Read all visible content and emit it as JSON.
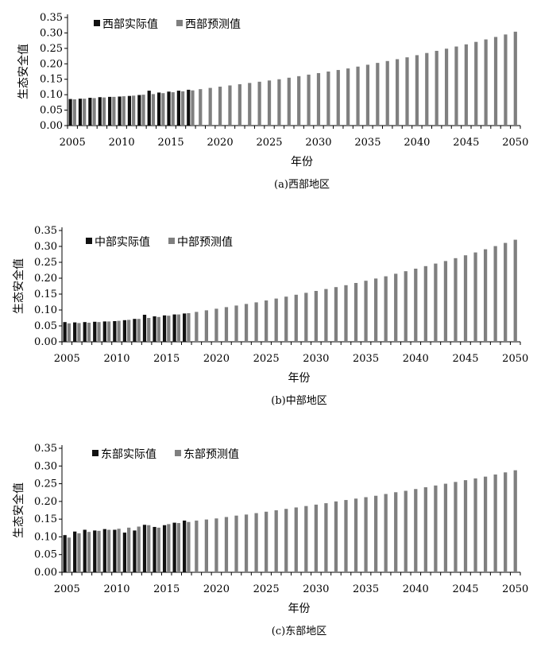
{
  "chart_data": [
    {
      "type": "bar",
      "caption": "(a)西部地区",
      "ylabel": "生态安全值",
      "xlabel": "年份",
      "ylim": [
        0,
        0.35
      ],
      "yticks": [
        "0.00",
        "0.05",
        "0.10",
        "0.15",
        "0.20",
        "0.25",
        "0.30",
        "0.35"
      ],
      "xticks": [
        2005,
        2010,
        2015,
        2020,
        2025,
        2030,
        2035,
        2040,
        2045,
        2050
      ],
      "series": [
        {
          "name": "西部实际值",
          "color": "#111111",
          "x": [
            2005,
            2006,
            2007,
            2008,
            2009,
            2010,
            2011,
            2012,
            2013,
            2014,
            2015,
            2016,
            2017
          ],
          "values": [
            0.086,
            0.087,
            0.09,
            0.092,
            0.093,
            0.094,
            0.096,
            0.099,
            0.113,
            0.107,
            0.11,
            0.113,
            0.116
          ]
        },
        {
          "name": "西部预测值",
          "color": "#7f7f7f",
          "x": [
            2005,
            2006,
            2007,
            2008,
            2009,
            2010,
            2011,
            2012,
            2013,
            2014,
            2015,
            2016,
            2017,
            2018,
            2019,
            2020,
            2021,
            2022,
            2023,
            2024,
            2025,
            2026,
            2027,
            2028,
            2029,
            2030,
            2031,
            2032,
            2033,
            2034,
            2035,
            2036,
            2037,
            2038,
            2039,
            2040,
            2041,
            2042,
            2043,
            2044,
            2045,
            2046,
            2047,
            2048,
            2049,
            2050
          ],
          "values": [
            0.085,
            0.087,
            0.089,
            0.091,
            0.093,
            0.095,
            0.097,
            0.1,
            0.102,
            0.105,
            0.108,
            0.111,
            0.114,
            0.118,
            0.122,
            0.126,
            0.13,
            0.134,
            0.138,
            0.142,
            0.146,
            0.15,
            0.155,
            0.16,
            0.165,
            0.17,
            0.175,
            0.18,
            0.185,
            0.191,
            0.197,
            0.203,
            0.209,
            0.215,
            0.221,
            0.228,
            0.235,
            0.242,
            0.249,
            0.256,
            0.263,
            0.271,
            0.279,
            0.287,
            0.295,
            0.304
          ]
        }
      ]
    },
    {
      "type": "bar",
      "caption": "(b)中部地区",
      "ylabel": "生态安全值",
      "xlabel": "年份",
      "ylim": [
        0,
        0.35
      ],
      "yticks": [
        "0.00",
        "0.05",
        "0.10",
        "0.15",
        "0.20",
        "0.25",
        "0.30",
        "0.35"
      ],
      "xticks": [
        2005,
        2010,
        2015,
        2020,
        2025,
        2030,
        2035,
        2040,
        2045,
        2050
      ],
      "series": [
        {
          "name": "中部实际值",
          "color": "#111111",
          "x": [
            2005,
            2006,
            2007,
            2008,
            2009,
            2010,
            2011,
            2012,
            2013,
            2014,
            2015,
            2016,
            2017
          ],
          "values": [
            0.062,
            0.061,
            0.062,
            0.063,
            0.064,
            0.065,
            0.068,
            0.072,
            0.085,
            0.08,
            0.083,
            0.086,
            0.089
          ]
        },
        {
          "name": "中部预测值",
          "color": "#7f7f7f",
          "x": [
            2005,
            2006,
            2007,
            2008,
            2009,
            2010,
            2011,
            2012,
            2013,
            2014,
            2015,
            2016,
            2017,
            2018,
            2019,
            2020,
            2021,
            2022,
            2023,
            2024,
            2025,
            2026,
            2027,
            2028,
            2029,
            2030,
            2031,
            2032,
            2033,
            2034,
            2035,
            2036,
            2037,
            2038,
            2039,
            2040,
            2041,
            2042,
            2043,
            2044,
            2045,
            2046,
            2047,
            2048,
            2049,
            2050
          ],
          "values": [
            0.058,
            0.059,
            0.06,
            0.062,
            0.064,
            0.066,
            0.069,
            0.072,
            0.075,
            0.078,
            0.082,
            0.086,
            0.09,
            0.094,
            0.099,
            0.104,
            0.109,
            0.114,
            0.119,
            0.124,
            0.13,
            0.136,
            0.142,
            0.148,
            0.154,
            0.16,
            0.166,
            0.172,
            0.178,
            0.185,
            0.192,
            0.199,
            0.206,
            0.214,
            0.222,
            0.23,
            0.238,
            0.246,
            0.254,
            0.263,
            0.272,
            0.281,
            0.291,
            0.301,
            0.311,
            0.321
          ]
        }
      ]
    },
    {
      "type": "bar",
      "caption": "(c)东部地区",
      "ylabel": "生态安全值",
      "xlabel": "年份",
      "ylim": [
        0,
        0.35
      ],
      "yticks": [
        "0.00",
        "0.05",
        "0.10",
        "0.15",
        "0.20",
        "0.25",
        "0.30",
        "0.35"
      ],
      "xticks": [
        2005,
        2010,
        2015,
        2020,
        2025,
        2030,
        2035,
        2040,
        2045,
        2050
      ],
      "series": [
        {
          "name": "东部实际值",
          "color": "#111111",
          "x": [
            2005,
            2006,
            2007,
            2008,
            2009,
            2010,
            2011,
            2012,
            2013,
            2014,
            2015,
            2016,
            2017
          ],
          "values": [
            0.105,
            0.115,
            0.12,
            0.118,
            0.122,
            0.12,
            0.112,
            0.118,
            0.134,
            0.128,
            0.133,
            0.14,
            0.146
          ]
        },
        {
          "name": "东部预测值",
          "color": "#7f7f7f",
          "x": [
            2005,
            2006,
            2007,
            2008,
            2009,
            2010,
            2011,
            2012,
            2013,
            2014,
            2015,
            2016,
            2017,
            2018,
            2019,
            2020,
            2021,
            2022,
            2023,
            2024,
            2025,
            2026,
            2027,
            2028,
            2029,
            2030,
            2031,
            2032,
            2033,
            2034,
            2035,
            2036,
            2037,
            2038,
            2039,
            2040,
            2041,
            2042,
            2043,
            2044,
            2045,
            2046,
            2047,
            2048,
            2049,
            2050
          ],
          "values": [
            0.098,
            0.11,
            0.114,
            0.117,
            0.12,
            0.123,
            0.126,
            0.129,
            0.133,
            0.126,
            0.136,
            0.139,
            0.142,
            0.146,
            0.149,
            0.152,
            0.156,
            0.16,
            0.163,
            0.167,
            0.171,
            0.175,
            0.179,
            0.183,
            0.187,
            0.191,
            0.195,
            0.2,
            0.204,
            0.208,
            0.212,
            0.216,
            0.221,
            0.226,
            0.23,
            0.235,
            0.24,
            0.245,
            0.25,
            0.255,
            0.26,
            0.265,
            0.27,
            0.276,
            0.282,
            0.288
          ]
        }
      ]
    }
  ]
}
